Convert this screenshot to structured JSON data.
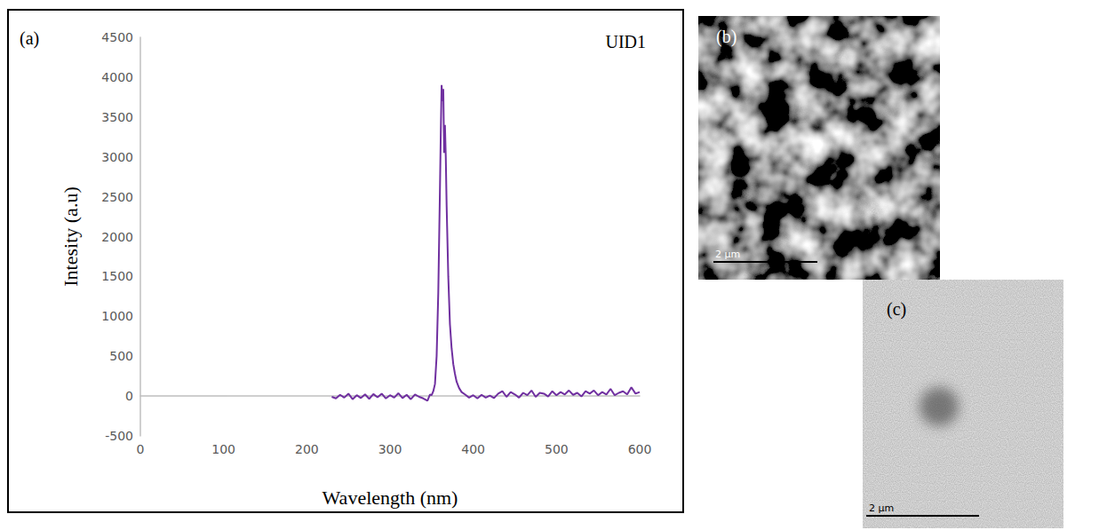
{
  "chart_data": {
    "type": "line",
    "title": "UID1",
    "x_label": "Wavelength (nm)",
    "y_label": "Intesity (a.u)",
    "color": "#7030a0",
    "grid": false,
    "xlim": [
      0,
      600
    ],
    "xticks": [
      0,
      100,
      200,
      300,
      400,
      500,
      600
    ],
    "ylim": [
      -500,
      4500
    ],
    "yticks": [
      -500,
      0,
      500,
      1000,
      1500,
      2000,
      2500,
      3000,
      3500,
      4000,
      4500
    ],
    "x": [
      230,
      235,
      240,
      245,
      250,
      255,
      260,
      265,
      270,
      275,
      280,
      285,
      290,
      295,
      300,
      305,
      310,
      315,
      320,
      325,
      330,
      335,
      340,
      345,
      348,
      350,
      352,
      354,
      356,
      358,
      360,
      361,
      362,
      363,
      364,
      365,
      366,
      367,
      368,
      370,
      372,
      374,
      376,
      378,
      380,
      383,
      386,
      390,
      395,
      400,
      405,
      410,
      415,
      420,
      425,
      430,
      435,
      440,
      445,
      450,
      455,
      460,
      465,
      470,
      475,
      480,
      485,
      490,
      495,
      500,
      505,
      510,
      515,
      520,
      525,
      530,
      535,
      540,
      545,
      550,
      555,
      560,
      565,
      570,
      575,
      580,
      585,
      590,
      595,
      600
    ],
    "values": [
      -10,
      -30,
      15,
      -20,
      30,
      -40,
      10,
      -25,
      20,
      -35,
      25,
      -15,
      30,
      -30,
      10,
      -20,
      35,
      -25,
      15,
      -40,
      20,
      -10,
      -30,
      -60,
      20,
      10,
      60,
      150,
      500,
      1300,
      2600,
      3300,
      3900,
      3700,
      3850,
      3050,
      3400,
      3000,
      2400,
      1500,
      900,
      600,
      400,
      280,
      180,
      100,
      50,
      20,
      -20,
      10,
      -30,
      15,
      -20,
      5,
      -25,
      30,
      60,
      -10,
      50,
      20,
      -20,
      40,
      10,
      70,
      -10,
      40,
      30,
      -5,
      60,
      10,
      50,
      20,
      70,
      15,
      40,
      -5,
      60,
      30,
      70,
      10,
      50,
      20,
      90,
      10,
      40,
      60,
      20,
      110,
      30,
      50
    ]
  },
  "panels": {
    "a": {
      "label": "(a)"
    },
    "b": {
      "label": "(b)",
      "scale_bar": "2 μm"
    },
    "c": {
      "label": "(c)",
      "scale_bar": "2 μm"
    }
  }
}
